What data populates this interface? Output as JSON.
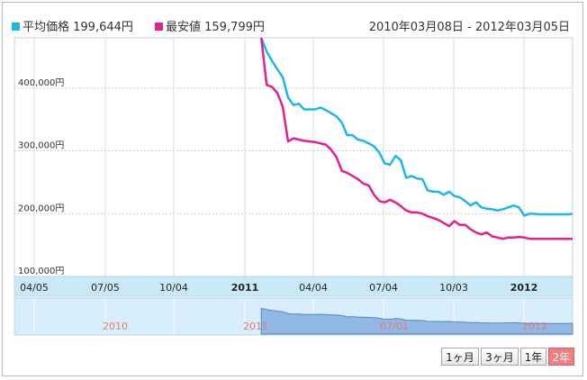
{
  "chart_data": {
    "type": "line",
    "title": "",
    "legend": [
      {
        "label": "平均価格 199,644円",
        "color": "#1ab7ea"
      },
      {
        "label": "最安値 159,799円",
        "color": "#e5208e"
      }
    ],
    "date_range": "2010年03月08日 - 2012年03月05日",
    "y_ticks": [
      "400,000円",
      "300,000円",
      "200,000円",
      "100,000円"
    ],
    "y_tick_values": [
      400000,
      300000,
      200000,
      100000
    ],
    "ylim": [
      100000,
      480000
    ],
    "x_ticks": [
      "04/05",
      "07/05",
      "10/04",
      "2011",
      "04/04",
      "07/04",
      "10/03",
      "2012"
    ],
    "x_ticks_bold": [
      "2011",
      "2012"
    ],
    "x_range": [
      "2010-03-08",
      "2012-03-05"
    ],
    "series": [
      {
        "name": "平均価格",
        "color": "#1ab7ea",
        "x": [
          "2011-01-24",
          "2011-01-31",
          "2011-02-07",
          "2011-02-14",
          "2011-02-21",
          "2011-02-28",
          "2011-03-07",
          "2011-03-14",
          "2011-03-21",
          "2011-03-28",
          "2011-04-04",
          "2011-04-11",
          "2011-04-18",
          "2011-04-25",
          "2011-05-02",
          "2011-05-09",
          "2011-05-16",
          "2011-05-23",
          "2011-05-30",
          "2011-06-06",
          "2011-06-13",
          "2011-06-20",
          "2011-06-27",
          "2011-07-04",
          "2011-07-11",
          "2011-07-18",
          "2011-07-25",
          "2011-08-01",
          "2011-08-08",
          "2011-08-15",
          "2011-08-22",
          "2011-08-29",
          "2011-09-05",
          "2011-09-12",
          "2011-09-19",
          "2011-09-26",
          "2011-10-03",
          "2011-10-10",
          "2011-10-17",
          "2011-10-24",
          "2011-10-31",
          "2011-11-07",
          "2011-11-14",
          "2011-11-21",
          "2011-11-28",
          "2011-12-05",
          "2011-12-12",
          "2011-12-19",
          "2011-12-26",
          "2012-01-02",
          "2012-01-09",
          "2012-01-16",
          "2012-01-23",
          "2012-01-30",
          "2012-02-06",
          "2012-02-13",
          "2012-02-20",
          "2012-02-27",
          "2012-03-05"
        ],
        "values": [
          480000,
          458000,
          443000,
          430000,
          417000,
          385000,
          373000,
          375000,
          366000,
          366000,
          366000,
          369000,
          365000,
          360000,
          355000,
          345000,
          325000,
          325000,
          318000,
          316000,
          312000,
          307000,
          297000,
          280000,
          278000,
          292000,
          285000,
          257000,
          260000,
          256000,
          255000,
          237000,
          235000,
          235000,
          230000,
          235000,
          228000,
          226000,
          220000,
          213000,
          218000,
          210000,
          208000,
          207000,
          205000,
          207000,
          210000,
          213000,
          210000,
          197000,
          200000,
          199644,
          199000,
          199000,
          199000,
          199000,
          199000,
          199000,
          199644
        ]
      },
      {
        "name": "最安値",
        "color": "#e5208e",
        "x": [
          "2011-01-24",
          "2011-01-31",
          "2011-02-07",
          "2011-02-14",
          "2011-02-21",
          "2011-02-28",
          "2011-03-07",
          "2011-03-14",
          "2011-03-21",
          "2011-03-28",
          "2011-04-04",
          "2011-04-11",
          "2011-04-18",
          "2011-04-25",
          "2011-05-02",
          "2011-05-09",
          "2011-05-16",
          "2011-05-23",
          "2011-05-30",
          "2011-06-06",
          "2011-06-13",
          "2011-06-20",
          "2011-06-27",
          "2011-07-04",
          "2011-07-11",
          "2011-07-18",
          "2011-07-25",
          "2011-08-01",
          "2011-08-08",
          "2011-08-15",
          "2011-08-22",
          "2011-08-29",
          "2011-09-05",
          "2011-09-12",
          "2011-09-19",
          "2011-09-26",
          "2011-10-03",
          "2011-10-10",
          "2011-10-17",
          "2011-10-24",
          "2011-10-31",
          "2011-11-07",
          "2011-11-14",
          "2011-11-21",
          "2011-11-28",
          "2011-12-05",
          "2011-12-12",
          "2011-12-19",
          "2011-12-26",
          "2012-01-02",
          "2012-01-09",
          "2012-01-16",
          "2012-01-23",
          "2012-01-30",
          "2012-02-06",
          "2012-02-13",
          "2012-02-20",
          "2012-02-27",
          "2012-03-05"
        ],
        "values": [
          480000,
          405000,
          402000,
          392000,
          370000,
          315000,
          320000,
          318000,
          316000,
          315000,
          314000,
          312000,
          310000,
          302000,
          290000,
          268000,
          265000,
          260000,
          255000,
          248000,
          245000,
          230000,
          220000,
          218000,
          222000,
          218000,
          212000,
          205000,
          202000,
          202000,
          200000,
          196000,
          193000,
          190000,
          185000,
          180000,
          188000,
          182000,
          182000,
          175000,
          170000,
          167000,
          170000,
          164000,
          162000,
          160000,
          162000,
          162000,
          163000,
          162000,
          160000,
          159799,
          159799,
          159799,
          159799,
          159799,
          159799,
          159799,
          159799
        ]
      }
    ],
    "navigator": {
      "year_labels": [
        "2010",
        "2011",
        "07/01",
        "2012"
      ],
      "fill_color": "#7ba6dc",
      "ylim": [
        0,
        480000
      ]
    },
    "grid": true
  },
  "range_buttons": [
    "1ヶ月",
    "3ヶ月",
    "1年",
    "2年"
  ],
  "active_button": "2年",
  "colors": {
    "avg": "#1ab7ea",
    "min": "#e5208e",
    "grid": "#dddddd",
    "axis_band": "#c9e9f7",
    "navigator_bg": "#d8eefa",
    "button_active": "#f07f7f"
  }
}
